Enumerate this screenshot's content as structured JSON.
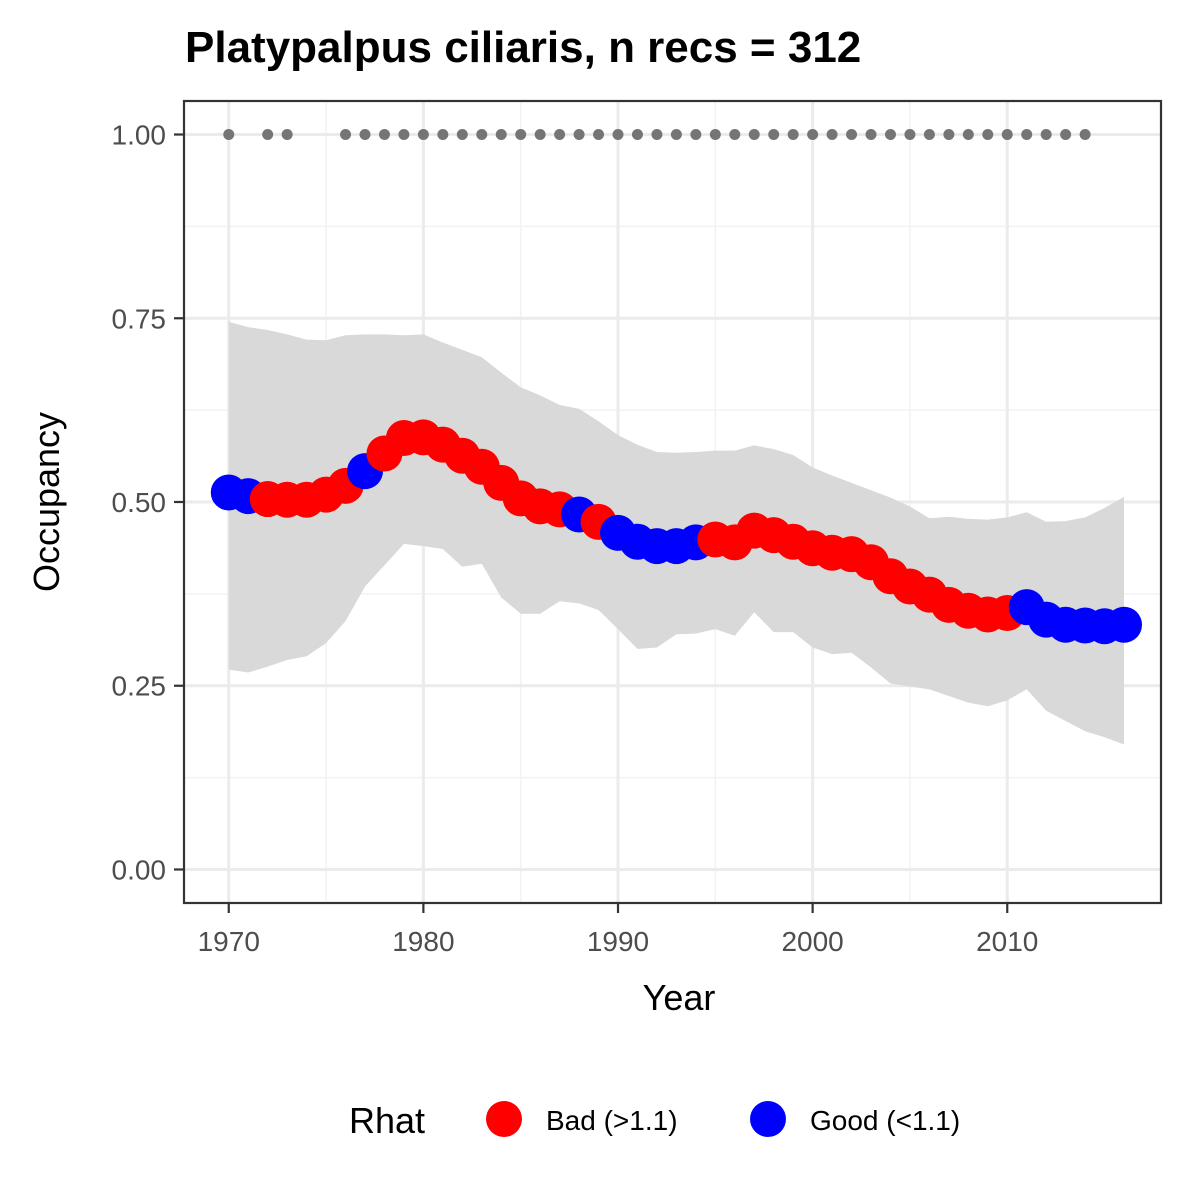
{
  "chart_data": {
    "type": "line",
    "title": "Platypalpus ciliaris, n recs = 312",
    "xlabel": "Year",
    "ylabel": "Occupancy",
    "xlim": [
      1967.7,
      2017.9
    ],
    "ylim": [
      -0.0456,
      1.0456
    ],
    "x_ticks": [
      1970,
      1980,
      1990,
      2000,
      2010
    ],
    "x_tick_labels": [
      "1970",
      "1980",
      "1990",
      "2000",
      "2010"
    ],
    "y_ticks": [
      0,
      0.25,
      0.5,
      0.75,
      1.0
    ],
    "y_tick_labels": [
      "0.00",
      "0.25",
      "0.50",
      "0.75",
      "1.00"
    ],
    "grid": true,
    "legend_position": "bottom",
    "legend": {
      "title": "Rhat",
      "items": [
        {
          "label": "Bad (>1.1)",
          "color": "#ff0000"
        },
        {
          "label": "Good (<1.1)",
          "color": "#0000ff"
        }
      ]
    },
    "band_color": "#d9d9d9",
    "record_dot_color": "#757575",
    "record_years": [
      1970,
      1972,
      1973,
      1976,
      1977,
      1978,
      1979,
      1980,
      1981,
      1982,
      1983,
      1984,
      1985,
      1986,
      1987,
      1988,
      1989,
      1990,
      1991,
      1992,
      1993,
      1994,
      1995,
      1996,
      1997,
      1998,
      1999,
      2000,
      2001,
      2002,
      2003,
      2004,
      2005,
      2006,
      2007,
      2008,
      2009,
      2010,
      2011,
      2012,
      2013,
      2014
    ],
    "record_value": 1.0,
    "series": [
      {
        "name": "Occupancy",
        "points": [
          {
            "x": 1970,
            "y": 0.513,
            "lower": 0.272,
            "upper": 0.745,
            "rhat": "Good"
          },
          {
            "x": 1971,
            "y": 0.508,
            "lower": 0.268,
            "upper": 0.738,
            "rhat": "Good"
          },
          {
            "x": 1972,
            "y": 0.504,
            "lower": 0.276,
            "upper": 0.734,
            "rhat": "Bad"
          },
          {
            "x": 1973,
            "y": 0.503,
            "lower": 0.285,
            "upper": 0.728,
            "rhat": "Bad"
          },
          {
            "x": 1974,
            "y": 0.503,
            "lower": 0.29,
            "upper": 0.721,
            "rhat": "Bad"
          },
          {
            "x": 1975,
            "y": 0.51,
            "lower": 0.308,
            "upper": 0.72,
            "rhat": "Bad"
          },
          {
            "x": 1976,
            "y": 0.522,
            "lower": 0.338,
            "upper": 0.727,
            "rhat": "Bad"
          },
          {
            "x": 1977,
            "y": 0.542,
            "lower": 0.385,
            "upper": 0.728,
            "rhat": "Good"
          },
          {
            "x": 1978,
            "y": 0.566,
            "lower": 0.414,
            "upper": 0.728,
            "rhat": "Bad"
          },
          {
            "x": 1979,
            "y": 0.587,
            "lower": 0.443,
            "upper": 0.727,
            "rhat": "Bad"
          },
          {
            "x": 1980,
            "y": 0.588,
            "lower": 0.44,
            "upper": 0.728,
            "rhat": "Bad"
          },
          {
            "x": 1981,
            "y": 0.578,
            "lower": 0.436,
            "upper": 0.717,
            "rhat": "Bad"
          },
          {
            "x": 1982,
            "y": 0.563,
            "lower": 0.412,
            "upper": 0.707,
            "rhat": "Bad"
          },
          {
            "x": 1983,
            "y": 0.548,
            "lower": 0.416,
            "upper": 0.697,
            "rhat": "Bad"
          },
          {
            "x": 1984,
            "y": 0.526,
            "lower": 0.37,
            "upper": 0.676,
            "rhat": "Bad"
          },
          {
            "x": 1985,
            "y": 0.505,
            "lower": 0.348,
            "upper": 0.656,
            "rhat": "Bad"
          },
          {
            "x": 1986,
            "y": 0.494,
            "lower": 0.348,
            "upper": 0.645,
            "rhat": "Bad"
          },
          {
            "x": 1987,
            "y": 0.49,
            "lower": 0.365,
            "upper": 0.632,
            "rhat": "Bad"
          },
          {
            "x": 1988,
            "y": 0.483,
            "lower": 0.362,
            "upper": 0.627,
            "rhat": "Good"
          },
          {
            "x": 1989,
            "y": 0.473,
            "lower": 0.353,
            "upper": 0.61,
            "rhat": "Bad"
          },
          {
            "x": 1990,
            "y": 0.458,
            "lower": 0.327,
            "upper": 0.591,
            "rhat": "Good"
          },
          {
            "x": 1991,
            "y": 0.446,
            "lower": 0.3,
            "upper": 0.578,
            "rhat": "Good"
          },
          {
            "x": 1992,
            "y": 0.44,
            "lower": 0.302,
            "upper": 0.568,
            "rhat": "Good"
          },
          {
            "x": 1993,
            "y": 0.44,
            "lower": 0.32,
            "upper": 0.567,
            "rhat": "Good"
          },
          {
            "x": 1994,
            "y": 0.445,
            "lower": 0.321,
            "upper": 0.568,
            "rhat": "Good"
          },
          {
            "x": 1995,
            "y": 0.449,
            "lower": 0.327,
            "upper": 0.57,
            "rhat": "Bad"
          },
          {
            "x": 1996,
            "y": 0.445,
            "lower": 0.318,
            "upper": 0.57,
            "rhat": "Bad"
          },
          {
            "x": 1997,
            "y": 0.461,
            "lower": 0.35,
            "upper": 0.577,
            "rhat": "Bad"
          },
          {
            "x": 1998,
            "y": 0.455,
            "lower": 0.323,
            "upper": 0.572,
            "rhat": "Bad"
          },
          {
            "x": 1999,
            "y": 0.446,
            "lower": 0.323,
            "upper": 0.564,
            "rhat": "Bad"
          },
          {
            "x": 2000,
            "y": 0.437,
            "lower": 0.302,
            "upper": 0.547,
            "rhat": "Bad"
          },
          {
            "x": 2001,
            "y": 0.431,
            "lower": 0.293,
            "upper": 0.536,
            "rhat": "Bad"
          },
          {
            "x": 2002,
            "y": 0.429,
            "lower": 0.295,
            "upper": 0.526,
            "rhat": "Bad"
          },
          {
            "x": 2003,
            "y": 0.418,
            "lower": 0.275,
            "upper": 0.516,
            "rhat": "Bad"
          },
          {
            "x": 2004,
            "y": 0.399,
            "lower": 0.253,
            "upper": 0.506,
            "rhat": "Bad"
          },
          {
            "x": 2005,
            "y": 0.385,
            "lower": 0.249,
            "upper": 0.494,
            "rhat": "Bad"
          },
          {
            "x": 2006,
            "y": 0.374,
            "lower": 0.245,
            "upper": 0.478,
            "rhat": "Bad"
          },
          {
            "x": 2007,
            "y": 0.36,
            "lower": 0.236,
            "upper": 0.48,
            "rhat": "Bad"
          },
          {
            "x": 2008,
            "y": 0.352,
            "lower": 0.227,
            "upper": 0.477,
            "rhat": "Bad"
          },
          {
            "x": 2009,
            "y": 0.347,
            "lower": 0.222,
            "upper": 0.476,
            "rhat": "Bad"
          },
          {
            "x": 2010,
            "y": 0.349,
            "lower": 0.23,
            "upper": 0.479,
            "rhat": "Bad"
          },
          {
            "x": 2011,
            "y": 0.357,
            "lower": 0.245,
            "upper": 0.486,
            "rhat": "Good"
          },
          {
            "x": 2012,
            "y": 0.34,
            "lower": 0.216,
            "upper": 0.473,
            "rhat": "Good"
          },
          {
            "x": 2013,
            "y": 0.333,
            "lower": 0.202,
            "upper": 0.474,
            "rhat": "Good"
          },
          {
            "x": 2014,
            "y": 0.332,
            "lower": 0.188,
            "upper": 0.479,
            "rhat": "Good"
          },
          {
            "x": 2015,
            "y": 0.331,
            "lower": 0.18,
            "upper": 0.492,
            "rhat": "Good"
          },
          {
            "x": 2016,
            "y": 0.333,
            "lower": 0.17,
            "upper": 0.507,
            "rhat": "Good"
          }
        ]
      }
    ]
  }
}
